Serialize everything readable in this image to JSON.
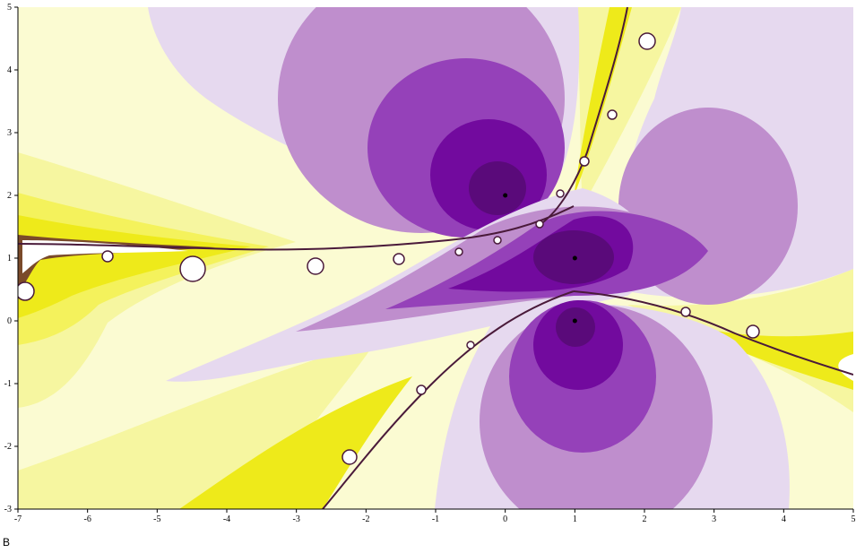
{
  "panel_label": "B",
  "chart_data": {
    "type": "heatmap",
    "subtype": "fractal basin-of-attraction plot (Newton-type iteration, banded by iteration count)",
    "xlim": [
      -7,
      5
    ],
    "ylim": [
      -3,
      5
    ],
    "x_ticks": [
      "-7",
      "-6",
      "-5",
      "-4",
      "-3",
      "-2",
      "-1",
      "0",
      "1",
      "2",
      "3",
      "4",
      "5"
    ],
    "y_ticks": [
      "5",
      "4",
      "3",
      "2",
      "1",
      "0",
      "-1",
      "-2",
      "-3"
    ],
    "grid": false,
    "roots": [
      {
        "x": 0,
        "y": 2
      },
      {
        "x": 1,
        "y": 1
      },
      {
        "x": 1,
        "y": 0
      }
    ],
    "colors": {
      "purple_bands": [
        "#e6d9ef",
        "#bf8ecd",
        "#9541b9",
        "#720a9e",
        "#5a0a7a"
      ],
      "yellow_bands": [
        "#fbfbd2",
        "#f6f6a0",
        "#f4f25c",
        "#eeea1a",
        "#ddd310"
      ],
      "boundary_dark": "#4a1a3a",
      "root_point": "#000000"
    }
  }
}
